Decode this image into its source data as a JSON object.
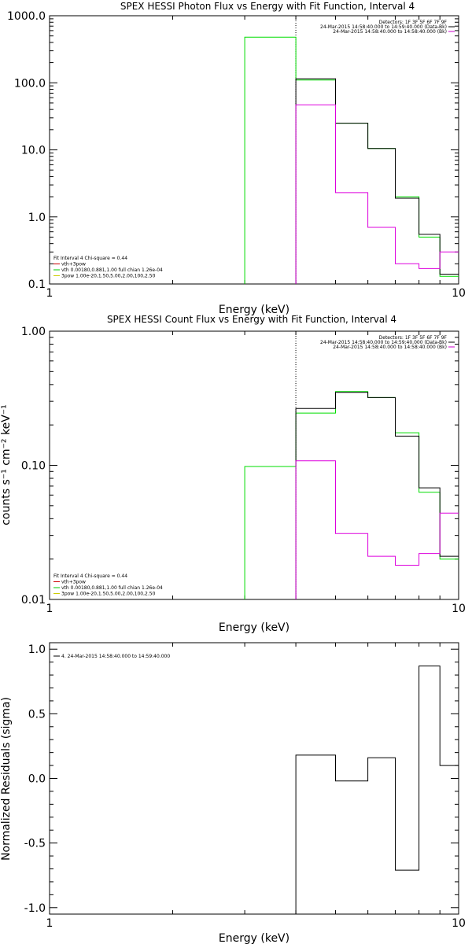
{
  "chart_data": [
    {
      "type": "step",
      "title": "SPEX HESSI Photon Flux vs Energy with Fit Function, Interval 4",
      "xlabel": "Energy (keV)",
      "ylabel": "",
      "xscale": "log",
      "yscale": "log",
      "xlim": [
        1,
        10
      ],
      "ylim": [
        0.1,
        1000
      ],
      "x_tick_labels": [
        {
          "value": 1,
          "label": "1"
        },
        {
          "value": 10,
          "label": "10"
        }
      ],
      "y_tick_labels": [
        {
          "value": 0.1,
          "label": "0.1"
        },
        {
          "value": 1,
          "label": "1.0"
        },
        {
          "value": 10,
          "label": "10.0"
        },
        {
          "value": 100,
          "label": "100.0"
        },
        {
          "value": 1000,
          "label": "1000.0"
        }
      ],
      "vline_x": 4.0,
      "header_text": [
        "Detectors: 1F 3F 5F 6F 7F 9F",
        "24-Mar-2015 14:58:40.000 to 14:59:40.000 (Data-Bk)",
        "24-Mar-2015 14:58:40.000 to 14:58:40.000 (Bk)"
      ],
      "header_colors": [
        "#000000",
        "#cc00cc"
      ],
      "legend_text": [
        "Fit Interval  4   Chi-square = 0.44",
        "vth+3pow",
        "vth  0.00180,0.881,1.00   full chian 1.26e-04",
        "3pow  1.00e-20,1.50,5.00,2.00,100,2.50"
      ],
      "legend_colors": [
        "#cc0000",
        "#00cc00",
        "#cccc00"
      ],
      "edges": [
        3.0,
        4.0,
        5.0,
        6.0,
        7.0,
        8.0,
        9.0,
        10.0
      ],
      "series": [
        {
          "color": "#00dd00",
          "values": [
            480,
            110,
            25,
            10.5,
            2.0,
            0.5,
            0.13
          ]
        },
        {
          "color": "#000000",
          "values": [
            null,
            115,
            25,
            10.5,
            1.9,
            0.55,
            0.14
          ]
        },
        {
          "color": "#dd00dd",
          "values": [
            null,
            47,
            2.3,
            0.7,
            0.2,
            0.17,
            0.3
          ]
        }
      ]
    },
    {
      "type": "step",
      "title": "SPEX HESSI Count Flux vs Energy with Fit Function, Interval 4",
      "xlabel": "Energy (keV)",
      "ylabel": "counts s⁻¹ cm⁻² keV⁻¹",
      "xscale": "log",
      "yscale": "log",
      "xlim": [
        1,
        10
      ],
      "ylim": [
        0.01,
        1.0
      ],
      "x_tick_labels": [
        {
          "value": 1,
          "label": "1"
        },
        {
          "value": 10,
          "label": "10"
        }
      ],
      "y_tick_labels": [
        {
          "value": 0.01,
          "label": "0.01"
        },
        {
          "value": 0.1,
          "label": "0.10"
        },
        {
          "value": 1,
          "label": "1.00"
        }
      ],
      "vline_x": 4.0,
      "header_text": [
        "Detectors: 1F 3F 5F 6F 7F 9F",
        "24-Mar-2015 14:58:40.000 to 14:59:40.000 (Data-Bk)",
        "24-Mar-2015 14:58:40.000 to 14:58:40.000 (Bk)"
      ],
      "header_colors": [
        "#000000",
        "#cc00cc"
      ],
      "legend_text": [
        "Fit Interval  4   Chi-square = 0.44",
        "vth+3pow",
        "vth  0.00180,0.881,1.00   full chian 1.26e-04",
        "3pow  1.00e-20,1.50,5.00,2.00,100,2.50"
      ],
      "legend_colors": [
        "#cc0000",
        "#00cc00",
        "#cccc00"
      ],
      "edges": [
        3.0,
        4.0,
        5.0,
        6.0,
        7.0,
        8.0,
        9.0,
        10.0
      ],
      "series": [
        {
          "color": "#00dd00",
          "values": [
            0.098,
            0.245,
            0.355,
            0.32,
            0.175,
            0.063,
            0.02
          ]
        },
        {
          "color": "#000000",
          "values": [
            null,
            0.265,
            0.35,
            0.32,
            0.165,
            0.068,
            0.021
          ]
        },
        {
          "color": "#dd00dd",
          "values": [
            null,
            0.108,
            0.031,
            0.021,
            0.018,
            0.022,
            0.044
          ]
        }
      ]
    },
    {
      "type": "step",
      "title": "",
      "xlabel": "Energy (keV)",
      "ylabel": "Normalized Residuals (sigma)",
      "xscale": "log",
      "yscale": "linear",
      "xlim": [
        1,
        10
      ],
      "ylim": [
        -1.05,
        1.05
      ],
      "x_tick_labels": [
        {
          "value": 1,
          "label": "1"
        },
        {
          "value": 10,
          "label": "10"
        }
      ],
      "y_tick_labels": [
        {
          "value": -1.0,
          "label": "-1.0"
        },
        {
          "value": -0.5,
          "label": "-0.5"
        },
        {
          "value": 0.0,
          "label": "0.0"
        },
        {
          "value": 0.5,
          "label": "0.5"
        },
        {
          "value": 1.0,
          "label": "1.0"
        }
      ],
      "legend_text": [
        "4. 24-Mar-2015 14:58:40.000 to 14:59:40.000"
      ],
      "legend_colors": [
        "#000000"
      ],
      "edges": [
        4.0,
        5.0,
        6.0,
        7.0,
        8.0,
        9.0,
        10.0
      ],
      "series": [
        {
          "color": "#000000",
          "values": [
            0.18,
            -0.02,
            0.16,
            -0.71,
            0.87,
            0.1
          ]
        }
      ]
    }
  ]
}
